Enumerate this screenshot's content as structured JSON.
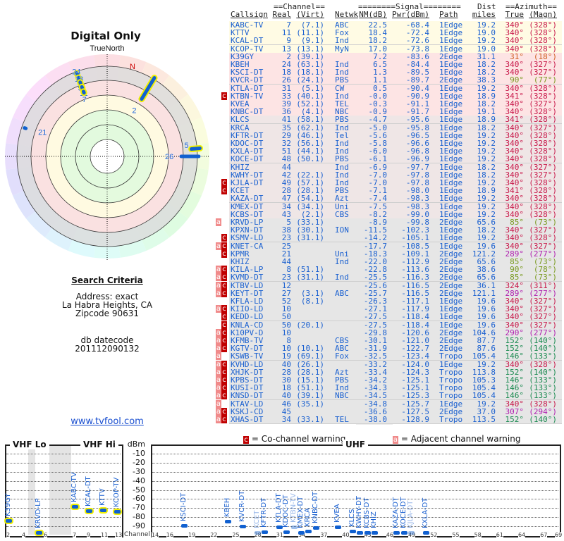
{
  "left": {
    "title": "Digital Only",
    "north_label": "TrueNorth",
    "magnetic_north_label": "N",
    "polar_markers": [
      {
        "label": "24",
        "azimuth": 340
      },
      {
        "label": "13",
        "azimuth": 340
      },
      {
        "label": "9",
        "azimuth": 340
      },
      {
        "label": "11",
        "azimuth": 340
      },
      {
        "label": "7",
        "azimuth": 340
      },
      {
        "label": "2",
        "azimuth": 31
      },
      {
        "label": "5",
        "azimuth": 85
      },
      {
        "label": "26",
        "azimuth": 90
      },
      {
        "label": "21",
        "azimuth": 289
      }
    ],
    "criteria_heading": "Search Criteria",
    "address_line": "Address: exact",
    "city_line": "La Habra Heights, CA",
    "zip_line": "Zipcode 90631",
    "db_label": "db datecode",
    "db_value": "201112090132",
    "site_link": "www.tvfool.com"
  },
  "table": {
    "group_channel": "==Channel==",
    "group_signal": "========Signal========",
    "group_dist": "Dist",
    "group_azimuth": "==Azimuth==",
    "headers": [
      "Callsign",
      "Real",
      "(Virt)",
      "Netwk",
      "NM(dB)",
      "Pwr(dBm)",
      "Path",
      "miles",
      "True",
      "(Magn)"
    ],
    "rows": [
      [
        "",
        "KABC-TV",
        "7",
        "(7.1)",
        "ABC",
        "22.5",
        "-68.4",
        "1Edge",
        "19.2",
        "340°",
        "(328°)"
      ],
      [
        "",
        "KTTV",
        "11",
        "(11.1)",
        "Fox",
        "18.4",
        "-72.4",
        "1Edge",
        "19.0",
        "340°",
        "(328°)"
      ],
      [
        "",
        "KCAL-DT",
        "9",
        "(9.1)",
        "Ind",
        "18.2",
        "-72.6",
        "1Edge",
        "19.2",
        "340°",
        "(328°)"
      ],
      [
        "",
        "KCOP-TV",
        "13",
        "(13.1)",
        "MyN",
        "17.0",
        "-73.8",
        "1Edge",
        "19.0",
        "340°",
        "(328°)"
      ],
      [
        "",
        "K39GY",
        "2",
        "(39.1)",
        "",
        "7.2",
        "-83.6",
        "2Edge",
        "31.1",
        "31°",
        "(18°)"
      ],
      [
        "",
        "KBEH",
        "24",
        "(63.1)",
        "Ind",
        "6.5",
        "-84.4",
        "1Edge",
        "18.2",
        "340°",
        "(327°)"
      ],
      [
        "",
        "KSCI-DT",
        "18",
        "(18.1)",
        "Ind",
        "1.3",
        "-89.5",
        "1Edge",
        "18.2",
        "340°",
        "(327°)"
      ],
      [
        "",
        "KVCR-DT",
        "26",
        "(24.1)",
        "PBS",
        "1.1",
        "-89.7",
        "2Edge",
        "38.3",
        "90°",
        "(77°)"
      ],
      [
        "",
        "KTLA-DT",
        "31",
        "(5.1)",
        "CW",
        "0.5",
        "-90.4",
        "1Edge",
        "19.2",
        "340°",
        "(328°)"
      ],
      [
        "c",
        "KTBN-TV",
        "33",
        "(40.1)",
        "Ind",
        "-0.0",
        "-90.9",
        "1Edge",
        "18.9",
        "341°",
        "(328°)"
      ],
      [
        "",
        "KVEA",
        "39",
        "(52.1)",
        "TEL",
        "-0.3",
        "-91.1",
        "1Edge",
        "18.2",
        "340°",
        "(327°)"
      ],
      [
        "",
        "KNBC-DT",
        "36",
        "(4.1)",
        "NBC",
        "-0.9",
        "-91.7",
        "1Edge",
        "19.1",
        "340°",
        "(328°)"
      ],
      [
        "",
        "KLCS",
        "41",
        "(58.1)",
        "PBS",
        "-4.7",
        "-95.6",
        "1Edge",
        "18.9",
        "341°",
        "(328°)"
      ],
      [
        "",
        "KRCA",
        "35",
        "(62.1)",
        "Ind",
        "-5.0",
        "-95.8",
        "1Edge",
        "18.2",
        "340°",
        "(327°)"
      ],
      [
        "",
        "KFTR-DT",
        "29",
        "(46.1)",
        "Tel",
        "-5.6",
        "-96.5",
        "1Edge",
        "19.2",
        "340°",
        "(328°)"
      ],
      [
        "",
        "KDOC-DT",
        "32",
        "(56.1)",
        "Ind",
        "-5.8",
        "-96.6",
        "1Edge",
        "19.2",
        "340°",
        "(328°)"
      ],
      [
        "",
        "KXLA-DT",
        "51",
        "(44.1)",
        "Ind",
        "-6.0",
        "-96.8",
        "1Edge",
        "19.2",
        "340°",
        "(328°)"
      ],
      [
        "",
        "KOCE-DT",
        "48",
        "(50.1)",
        "PBS",
        "-6.1",
        "-96.9",
        "1Edge",
        "19.2",
        "340°",
        "(328°)"
      ],
      [
        "",
        "KHIZ",
        "44",
        "",
        "Ind",
        "-6.9",
        "-97.7",
        "1Edge",
        "18.2",
        "340°",
        "(327°)"
      ],
      [
        "",
        "KWHY-DT",
        "42",
        "(22.1)",
        "Ind",
        "-7.0",
        "-97.8",
        "1Edge",
        "18.2",
        "340°",
        "(327°)"
      ],
      [
        "c",
        "KJLA-DT",
        "49",
        "(57.1)",
        "Ind",
        "-7.0",
        "-97.8",
        "1Edge",
        "19.2",
        "340°",
        "(328°)"
      ],
      [
        "c",
        "KCET",
        "28",
        "(28.1)",
        "PBS",
        "-7.1",
        "-98.0",
        "1Edge",
        "18.9",
        "341°",
        "(328°)"
      ],
      [
        "",
        "KAZA-DT",
        "47",
        "(54.1)",
        "Azt",
        "-7.4",
        "-98.3",
        "1Edge",
        "19.2",
        "340°",
        "(328°)"
      ],
      [
        "",
        "KMEX-DT",
        "34",
        "(34.1)",
        "Uni",
        "-7.5",
        "-98.3",
        "1Edge",
        "19.2",
        "340°",
        "(328°)"
      ],
      [
        "",
        "KCBS-DT",
        "43",
        "(2.1)",
        "CBS",
        "-8.2",
        "-99.0",
        "1Edge",
        "19.2",
        "340°",
        "(328°)"
      ],
      [
        "a",
        "KRVD-LP",
        "5",
        "(33.1)",
        "",
        "-8.9",
        "-99.8",
        "2Edge",
        "65.6",
        "85°",
        "(73°)"
      ],
      [
        "",
        "KPXN-DT",
        "38",
        "(30.1)",
        "ION",
        "-11.5",
        "-102.3",
        "1Edge",
        "18.2",
        "340°",
        "(327°)"
      ],
      [
        "c",
        "KSMV-LD",
        "23",
        "(31.1)",
        "",
        "-14.2",
        "-105.1",
        "1Edge",
        "19.2",
        "340°",
        "(328°)"
      ],
      [
        "ac",
        "KNET-CA",
        "25",
        "",
        "",
        "-17.7",
        "-108.5",
        "1Edge",
        "19.6",
        "340°",
        "(327°)"
      ],
      [
        "c",
        "KPMR",
        "21",
        "",
        "Uni",
        "-18.3",
        "-109.1",
        "2Edge",
        "121.2",
        "289°",
        "(277°)"
      ],
      [
        "",
        "KHIZ",
        "44",
        "",
        "Ind",
        "-22.0",
        "-112.9",
        "2Edge",
        "65.6",
        "85°",
        "(73°)"
      ],
      [
        "ac",
        "KILA-LP",
        "8",
        "(51.1)",
        "",
        "-22.8",
        "-113.6",
        "2Edge",
        "38.6",
        "90°",
        "(78°)"
      ],
      [
        "ac",
        "KVMD-DT",
        "23",
        "(31.1)",
        "Ind",
        "-25.5",
        "-116.3",
        "2Edge",
        "65.6",
        "85°",
        "(73°)"
      ],
      [
        "ac",
        "KTBV-LD",
        "12",
        "",
        "",
        "-25.6",
        "-116.5",
        "2Edge",
        "36.1",
        "324°",
        "(311°)"
      ],
      [
        "ac",
        "KEYT-DT",
        "27",
        "(3.1)",
        "ABC",
        "-25.7",
        "-116.5",
        "2Edge",
        "121.1",
        "289°",
        "(277°)"
      ],
      [
        "",
        "KFLA-LD",
        "52",
        "(8.1)",
        "",
        "-26.3",
        "-117.1",
        "1Edge",
        "19.6",
        "340°",
        "(327°)"
      ],
      [
        "ac",
        "KIIO-LD",
        "10",
        "",
        "",
        "-27.1",
        "-117.9",
        "1Edge",
        "19.6",
        "340°",
        "(327°)"
      ],
      [
        "c",
        "KEDD-LD",
        "50",
        "",
        "",
        "-27.5",
        "-118.4",
        "1Edge",
        "19.6",
        "340°",
        "(327°)"
      ],
      [
        "c",
        "KNLA-CD",
        "50",
        "(20.1)",
        "",
        "-27.5",
        "-118.4",
        "1Edge",
        "19.6",
        "340°",
        "(327°)"
      ],
      [
        "ac",
        "K10PV-D",
        "10",
        "",
        "",
        "-29.8",
        "-120.6",
        "2Edge",
        "104.6",
        "290°",
        "(277°)"
      ],
      [
        "ac",
        "KFMB-TV",
        "8",
        "",
        "CBS",
        "-30.1",
        "-121.0",
        "2Edge",
        "87.7",
        "152°",
        "(140°)"
      ],
      [
        "ac",
        "KGTV-DT",
        "10",
        "(10.1)",
        "ABC",
        "-31.9",
        "-122.7",
        "2Edge",
        "87.6",
        "152°",
        "(140°)"
      ],
      [
        "a",
        "KSWB-TV",
        "19",
        "(69.1)",
        "Fox",
        "-32.5",
        "-123.4",
        "Tropo",
        "105.4",
        "146°",
        "(133°)"
      ],
      [
        "ac",
        "KVHD-LD",
        "40",
        "(26.1)",
        "",
        "-33.2",
        "-124.0",
        "1Edge",
        "19.2",
        "340°",
        "(328°)"
      ],
      [
        "ac",
        "XHJK-DT",
        "28",
        "(28.1)",
        "Azt",
        "-33.4",
        "-124.3",
        "Tropo",
        "113.8",
        "152°",
        "(140°)"
      ],
      [
        "ac",
        "KPBS-DT",
        "30",
        "(15.1)",
        "PBS",
        "-34.2",
        "-125.1",
        "Tropo",
        "105.3",
        "146°",
        "(133°)"
      ],
      [
        "ac",
        "KUSI-DT",
        "18",
        "(51.1)",
        "Ind",
        "-34.3",
        "-125.1",
        "Tropo",
        "105.4",
        "146°",
        "(133°)"
      ],
      [
        "ac",
        "KNSD-DT",
        "40",
        "(39.1)",
        "NBC",
        "-34.5",
        "-125.3",
        "Tropo",
        "105.4",
        "146°",
        "(133°)"
      ],
      [
        "a",
        "KTAV-LD",
        "46",
        "(35.1)",
        "",
        "-34.8",
        "-125.7",
        "1Edge",
        "19.2",
        "340°",
        "(328°)"
      ],
      [
        "ac",
        "KSKJ-CD",
        "45",
        "",
        "",
        "-36.6",
        "-127.5",
        "2Edge",
        "37.0",
        "307°",
        "(294°)"
      ],
      [
        "ac",
        "XHAS-DT",
        "34",
        "(33.1)",
        "TEL",
        "-38.0",
        "-128.9",
        "Tropo",
        "113.5",
        "152°",
        "(140°)"
      ]
    ]
  },
  "legend": {
    "co_flag": "c",
    "co_text": "= Co-channel warning",
    "adj_flag": "a",
    "adj_text": "= Adjacent channel warning"
  },
  "spectrum": {
    "vhf_lo": "VHF Lo",
    "vhf_hi": "VHF Hi",
    "uhf": "UHF",
    "unit": "dBm",
    "channel_label": "Channel",
    "y_ticks": [
      "-10",
      "-20",
      "-30",
      "-40",
      "-50",
      "-60",
      "-70",
      "-80",
      "-90"
    ],
    "vhf_lo_ticks": [
      "2",
      "4",
      "6"
    ],
    "vhf_hi_ticks": [
      "7",
      "9",
      "11",
      "13"
    ],
    "uhf_ticks": [
      "14",
      "16",
      "19",
      "22",
      "25",
      "28",
      "31",
      "34",
      "37",
      "40",
      "43",
      "46",
      "49",
      "52",
      "55",
      "58",
      "61",
      "64",
      "67",
      "69"
    ]
  },
  "colors": {
    "link": "#1a60d0",
    "co": "#c00000",
    "adj": "#f08a8a",
    "marker": "#1060d0",
    "highlight": "#f0f000"
  }
}
